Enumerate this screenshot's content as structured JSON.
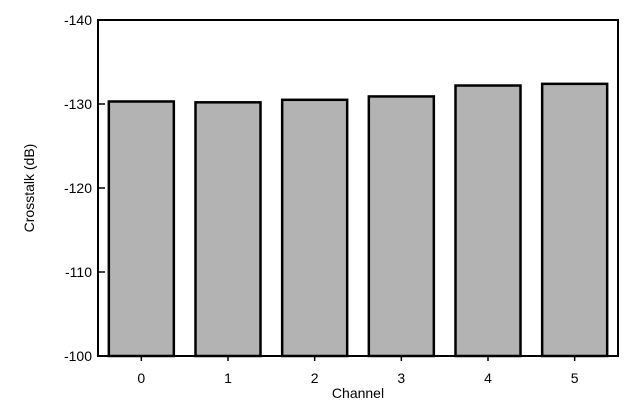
{
  "chart_data": {
    "type": "bar",
    "categories": [
      "0",
      "1",
      "2",
      "3",
      "4",
      "5"
    ],
    "values": [
      -130.3,
      -130.2,
      -130.5,
      -130.9,
      -132.2,
      -132.4
    ],
    "xlabel": "Channel",
    "ylabel": "Crosstalk (dB)",
    "ylim": [
      -100,
      -140
    ],
    "yticks": [
      -140,
      -130,
      -120,
      -110,
      -100
    ],
    "ytick_labels": [
      "-140",
      "-130",
      "-120",
      "-110",
      "-100"
    ],
    "y_axis_direction": "reversed (top = -140, bottom = -100)",
    "bar_color": "#b3b3b3",
    "bar_edge_color": "#000000",
    "grid": false,
    "legend": "none"
  }
}
